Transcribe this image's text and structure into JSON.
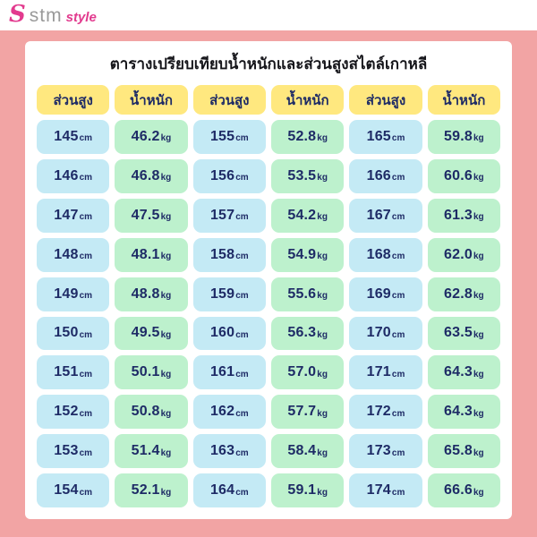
{
  "brand": {
    "icon": "S",
    "name": "stm",
    "accent": "style"
  },
  "title": "ตารางเปรียบเทียบน้ำหนักและส่วนสูงสไตล์เกาหลี",
  "table": {
    "header_height": "ส่วนสูง",
    "header_weight": "น้ำหนัก",
    "unit_height": "cm",
    "unit_weight": "kg",
    "header_repeat": 3
  },
  "chart_data": {
    "type": "table",
    "title": "ตารางเปรียบเทียบน้ำหนักและส่วนสูงสไตล์เกาหลี",
    "columns": [
      "ส่วนสูง (cm)",
      "น้ำหนัก (kg)"
    ],
    "rows": [
      [
        "145",
        "46.2"
      ],
      [
        "146",
        "46.8"
      ],
      [
        "147",
        "47.5"
      ],
      [
        "148",
        "48.1"
      ],
      [
        "149",
        "48.8"
      ],
      [
        "150",
        "49.5"
      ],
      [
        "151",
        "50.1"
      ],
      [
        "152",
        "50.8"
      ],
      [
        "153",
        "51.4"
      ],
      [
        "154",
        "52.1"
      ],
      [
        "155",
        "52.8"
      ],
      [
        "156",
        "53.5"
      ],
      [
        "157",
        "54.2"
      ],
      [
        "158",
        "54.9"
      ],
      [
        "159",
        "55.6"
      ],
      [
        "160",
        "56.3"
      ],
      [
        "161",
        "57.0"
      ],
      [
        "162",
        "57.7"
      ],
      [
        "163",
        "58.4"
      ],
      [
        "164",
        "59.1"
      ],
      [
        "165",
        "59.8"
      ],
      [
        "166",
        "60.6"
      ],
      [
        "167",
        "61.3"
      ],
      [
        "168",
        "62.0"
      ],
      [
        "169",
        "62.8"
      ],
      [
        "170",
        "63.5"
      ],
      [
        "171",
        "64.3"
      ],
      [
        "172",
        "64.3"
      ],
      [
        "173",
        "65.8"
      ],
      [
        "174",
        "66.6"
      ]
    ],
    "layout": {
      "display_columns": 3,
      "rows_per_column": 10
    }
  },
  "colors": {
    "background": "#F2A4A4",
    "topbar": "#FFFFFF",
    "card": "#FFFFFF",
    "header_cell": "#FFE87F",
    "height_cell": "#C4EAF5",
    "weight_cell": "#BDF1CD",
    "text": "#1E2B66",
    "brand_gray": "#9A9A9A",
    "brand_pink": "#E23A8E"
  }
}
